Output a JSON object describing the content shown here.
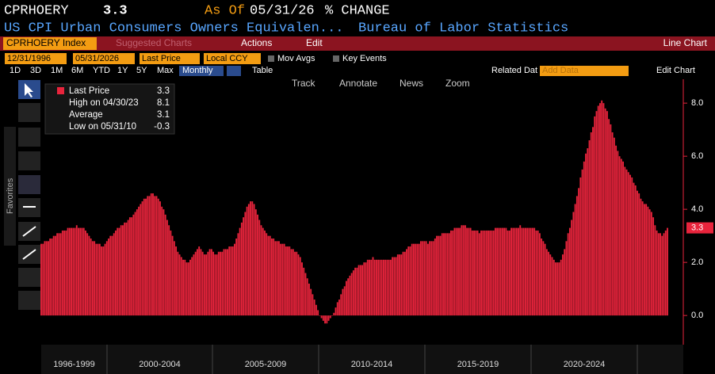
{
  "header": {
    "ticker": "CPRHOERY",
    "price": "3.3",
    "as_of": "As Of",
    "date": "05/31/26",
    "mode": "% CHANGE",
    "description": "US CPI Urban Consumers Owners Equivalen...",
    "source": "Bureau of Labor Statistics"
  },
  "toolbar": {
    "security": "CPRHOERY Index",
    "suggested": "Suggested Charts",
    "actions": "Actions",
    "edit": "Edit",
    "chart_type": "Line Chart"
  },
  "controls": {
    "start": "12/31/1996",
    "end": "05/31/2026",
    "field": "Last Price",
    "currency": "Local CCY",
    "mov_avgs": "Mov Avgs",
    "key_events": "Key Events",
    "ranges": [
      "1D",
      "3D",
      "1M",
      "6M",
      "YTD",
      "1Y",
      "5Y",
      "Max"
    ],
    "frequency": "Monthly",
    "table": "Table",
    "related": "Related Dat",
    "add_data": "Add Data",
    "edit_chart": "Edit Chart"
  },
  "tools": [
    "Track",
    "Annotate",
    "News",
    "Zoom"
  ],
  "sidebar": "Favorites",
  "chart_data": {
    "type": "bar",
    "color": "#e8243c",
    "legend": [
      {
        "name": "Last Price",
        "value": 3.3
      },
      {
        "name": "High on 04/30/23",
        "value": 8.1
      },
      {
        "name": "Average",
        "value": 3.1
      },
      {
        "name": "Low on 05/31/10",
        "value": -0.3
      }
    ],
    "x_labels": [
      "1996-1999",
      "2000-2004",
      "2005-2009",
      "2010-2014",
      "2015-2019",
      "2020-2024"
    ],
    "ylim": [
      -1.1,
      8.9
    ],
    "yticks": [
      {
        "value": 0,
        "label": "0.0"
      },
      {
        "value": 2,
        "label": "2.0"
      },
      {
        "value": 4,
        "label": "4.0"
      },
      {
        "value": 6,
        "label": "6.0"
      },
      {
        "value": 8,
        "label": "8.0"
      }
    ],
    "values": [
      2.7,
      2.7,
      2.8,
      2.8,
      2.8,
      2.9,
      2.9,
      3.0,
      3.0,
      3.1,
      3.1,
      3.1,
      3.2,
      3.2,
      3.2,
      3.3,
      3.3,
      3.3,
      3.3,
      3.3,
      3.4,
      3.3,
      3.3,
      3.3,
      3.3,
      3.2,
      3.1,
      3.0,
      2.9,
      2.8,
      2.8,
      2.7,
      2.7,
      2.7,
      2.6,
      2.6,
      2.7,
      2.8,
      2.9,
      3.0,
      3.0,
      3.1,
      3.2,
      3.3,
      3.3,
      3.4,
      3.4,
      3.5,
      3.5,
      3.6,
      3.7,
      3.7,
      3.8,
      3.9,
      4.0,
      4.1,
      4.2,
      4.3,
      4.4,
      4.4,
      4.5,
      4.5,
      4.6,
      4.6,
      4.5,
      4.5,
      4.4,
      4.3,
      4.1,
      4.0,
      3.8,
      3.6,
      3.4,
      3.2,
      3.0,
      2.8,
      2.6,
      2.4,
      2.3,
      2.2,
      2.1,
      2.1,
      2.0,
      2.0,
      2.1,
      2.2,
      2.3,
      2.4,
      2.5,
      2.6,
      2.5,
      2.4,
      2.3,
      2.3,
      2.4,
      2.5,
      2.5,
      2.4,
      2.3,
      2.3,
      2.4,
      2.4,
      2.4,
      2.5,
      2.5,
      2.5,
      2.6,
      2.6,
      2.6,
      2.7,
      2.9,
      3.1,
      3.3,
      3.5,
      3.7,
      3.9,
      4.1,
      4.2,
      4.3,
      4.3,
      4.2,
      4.0,
      3.8,
      3.6,
      3.4,
      3.3,
      3.2,
      3.1,
      3.0,
      3.0,
      2.9,
      2.9,
      2.8,
      2.8,
      2.8,
      2.7,
      2.7,
      2.7,
      2.6,
      2.6,
      2.6,
      2.5,
      2.5,
      2.4,
      2.4,
      2.3,
      2.2,
      2.0,
      1.8,
      1.6,
      1.4,
      1.2,
      1.0,
      0.8,
      0.6,
      0.4,
      0.2,
      0.0,
      -0.1,
      -0.2,
      -0.3,
      -0.3,
      -0.2,
      -0.1,
      0.0,
      0.1,
      0.3,
      0.5,
      0.6,
      0.8,
      1.0,
      1.1,
      1.3,
      1.4,
      1.5,
      1.6,
      1.7,
      1.8,
      1.8,
      1.9,
      1.9,
      1.9,
      2.0,
      2.0,
      2.1,
      2.1,
      2.1,
      2.2,
      2.1,
      2.1,
      2.1,
      2.1,
      2.1,
      2.1,
      2.1,
      2.1,
      2.1,
      2.1,
      2.2,
      2.2,
      2.2,
      2.3,
      2.3,
      2.3,
      2.4,
      2.4,
      2.5,
      2.6,
      2.6,
      2.7,
      2.7,
      2.7,
      2.7,
      2.7,
      2.8,
      2.8,
      2.8,
      2.8,
      2.7,
      2.8,
      2.8,
      2.8,
      2.9,
      3.0,
      3.0,
      3.0,
      3.1,
      3.1,
      3.1,
      3.1,
      3.1,
      3.2,
      3.2,
      3.3,
      3.3,
      3.3,
      3.3,
      3.4,
      3.4,
      3.4,
      3.3,
      3.3,
      3.3,
      3.2,
      3.2,
      3.2,
      3.2,
      3.1,
      3.2,
      3.2,
      3.2,
      3.2,
      3.2,
      3.2,
      3.2,
      3.2,
      3.3,
      3.3,
      3.3,
      3.3,
      3.3,
      3.3,
      3.3,
      3.2,
      3.2,
      3.3,
      3.3,
      3.3,
      3.3,
      3.3,
      3.4,
      3.3,
      3.3,
      3.3,
      3.3,
      3.3,
      3.3,
      3.3,
      3.3,
      3.2,
      3.2,
      3.1,
      2.9,
      2.8,
      2.7,
      2.5,
      2.4,
      2.3,
      2.2,
      2.1,
      2.0,
      2.0,
      2.0,
      2.1,
      2.3,
      2.5,
      2.8,
      3.1,
      3.3,
      3.6,
      3.9,
      4.2,
      4.5,
      4.8,
      5.2,
      5.5,
      5.8,
      6.1,
      6.3,
      6.6,
      6.9,
      7.1,
      7.5,
      7.7,
      7.9,
      8.0,
      8.1,
      8.0,
      7.8,
      7.7,
      7.4,
      7.2,
      6.9,
      6.7,
      6.4,
      6.2,
      6.0,
      5.9,
      5.8,
      5.6,
      5.5,
      5.4,
      5.3,
      5.2,
      5.0,
      4.9,
      4.7,
      4.6,
      4.4,
      4.3,
      4.2,
      4.2,
      4.1,
      4.0,
      3.9,
      3.7,
      3.4,
      3.2,
      3.1,
      3.1,
      3.0,
      3.1,
      3.2,
      3.3
    ]
  }
}
